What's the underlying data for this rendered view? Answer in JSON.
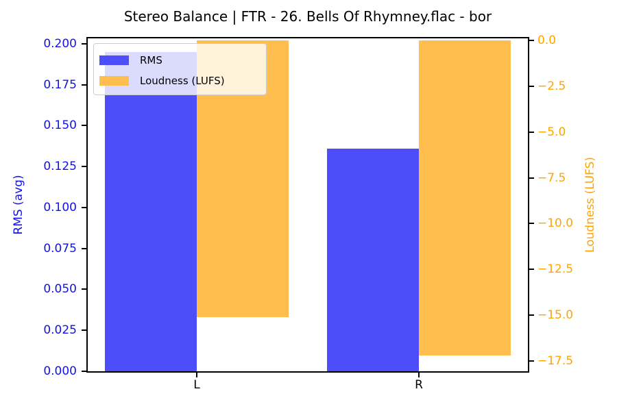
{
  "title": "Stereo Balance | FTR - 26. Bells Of Rhymney.flac - bor",
  "chart_data": {
    "type": "bar",
    "title": "Stereo Balance | FTR - 26. Bells Of Rhymney.flac - bor",
    "categories": [
      "L",
      "R"
    ],
    "series": [
      {
        "name": "RMS",
        "axis": "left",
        "color": "#4d4dfa",
        "values": [
          0.195,
          0.136
        ]
      },
      {
        "name": "Loudness (LUFS)",
        "axis": "right",
        "color": "#ffbe4d",
        "values": [
          -15.1,
          -17.2
        ]
      }
    ],
    "left_axis": {
      "label": "RMS (avg)",
      "color": "#1111ee",
      "tick_values": [
        0.0,
        0.025,
        0.05,
        0.075,
        0.1,
        0.125,
        0.15,
        0.175,
        0.2
      ],
      "tick_labels": [
        "0.000",
        "0.025",
        "0.050",
        "0.075",
        "0.100",
        "0.125",
        "0.150",
        "0.175",
        "0.200"
      ],
      "lim": [
        0,
        0.2033
      ]
    },
    "right_axis": {
      "label": "Loudness (LUFS)",
      "color": "#ffa500",
      "tick_values": [
        0.0,
        -2.5,
        -5.0,
        -7.5,
        -10.0,
        -12.5,
        -15.0,
        -17.5
      ],
      "tick_labels": [
        "0.0",
        "−2.5",
        "−5.0",
        "−7.5",
        "−10.0",
        "−12.5",
        "−15.0",
        "−17.5"
      ],
      "lim": [
        0.112,
        -18.06
      ]
    },
    "legend_position": "upper left",
    "grid": false,
    "background": "#ffffff"
  }
}
